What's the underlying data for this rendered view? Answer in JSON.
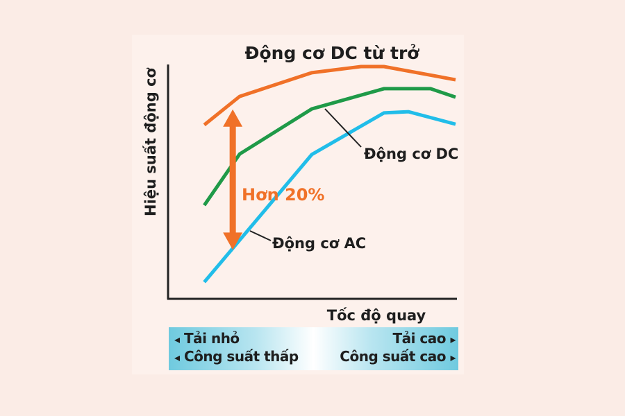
{
  "chart_data": {
    "type": "line",
    "title": "Động cơ DC từ trở",
    "xlabel": "Tốc độ quay",
    "ylabel": "Hiệu suất động cơ",
    "xlim": [
      0,
      100
    ],
    "ylim": [
      0,
      100
    ],
    "grid": false,
    "ticks": "none",
    "series": [
      {
        "key": "srm",
        "color": "#f07128",
        "x": [
          12.6,
          24.9,
          50,
          67.1,
          75.1,
          100
        ],
        "y": [
          74.3,
          86.4,
          96.5,
          99.1,
          99.1,
          93.5
        ]
      },
      {
        "name": "Động cơ DC",
        "key": "dc",
        "color": "#1f9a48",
        "x": [
          12.6,
          24.9,
          50,
          75.1,
          91.3,
          100
        ],
        "y": [
          40.1,
          61.9,
          81.1,
          89.7,
          89.7,
          86.1
        ]
      },
      {
        "name": "Động cơ AC",
        "key": "ac",
        "color": "#21bde9",
        "x": [
          12.6,
          50,
          75.1,
          83.6,
          100
        ],
        "y": [
          7.4,
          61.7,
          79.4,
          79.9,
          74.6
        ]
      }
    ],
    "annotation": {
      "text": "Hơn 20%",
      "color": "#f07128",
      "x": 22.5,
      "y_from": 22,
      "y_to": 80
    }
  },
  "bottom_bar": {
    "left_line1": "Tải nhỏ",
    "left_line2": "Công suất thấp",
    "right_line1": "Tải cao",
    "right_line2": "Công suất cao",
    "left_arrow": "◂",
    "right_arrow": "▸"
  }
}
